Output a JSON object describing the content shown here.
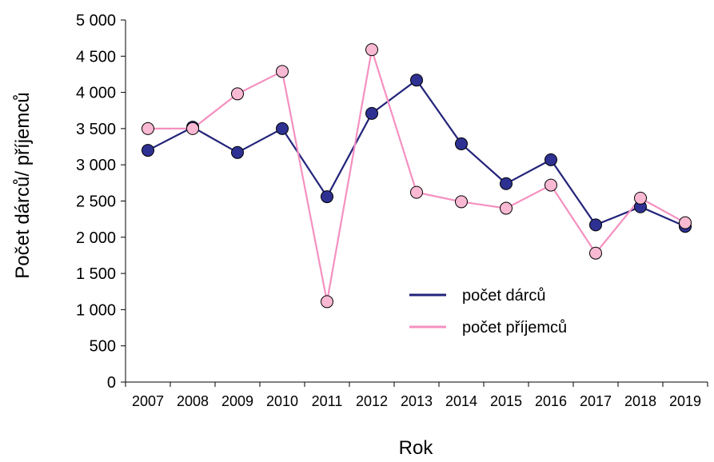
{
  "chart_data": {
    "type": "line",
    "title": "",
    "xlabel": "Rok",
    "ylabel": "Počet dárců/ příjemců",
    "categories": [
      "2007",
      "2008",
      "2009",
      "2010",
      "2011",
      "2012",
      "2013",
      "2014",
      "2015",
      "2016",
      "2017",
      "2018",
      "2019"
    ],
    "ylim": [
      0,
      5000
    ],
    "yticks": [
      0,
      500,
      1000,
      1500,
      2000,
      2500,
      3000,
      3500,
      4000,
      4500,
      5000
    ],
    "ytick_labels": [
      "0",
      "500",
      "1 000",
      "1 500",
      "2 000",
      "2 500",
      "3 000",
      "3 500",
      "4 000",
      "4 500",
      "5 000"
    ],
    "grid": false,
    "legend_position": "center-right",
    "series": [
      {
        "name": "počet dárců",
        "color": "#22237a",
        "marker_fill": "#2e3192",
        "values": [
          3200,
          3520,
          3170,
          3500,
          2560,
          3710,
          4170,
          3290,
          2740,
          3070,
          2170,
          2420,
          2150
        ]
      },
      {
        "name": "počet příjemců",
        "color": "#f590c0",
        "marker_fill": "#f9b9d3",
        "values": [
          3500,
          3500,
          3980,
          4290,
          1110,
          4590,
          2620,
          2490,
          2400,
          2720,
          1780,
          2540,
          2200
        ]
      }
    ]
  }
}
